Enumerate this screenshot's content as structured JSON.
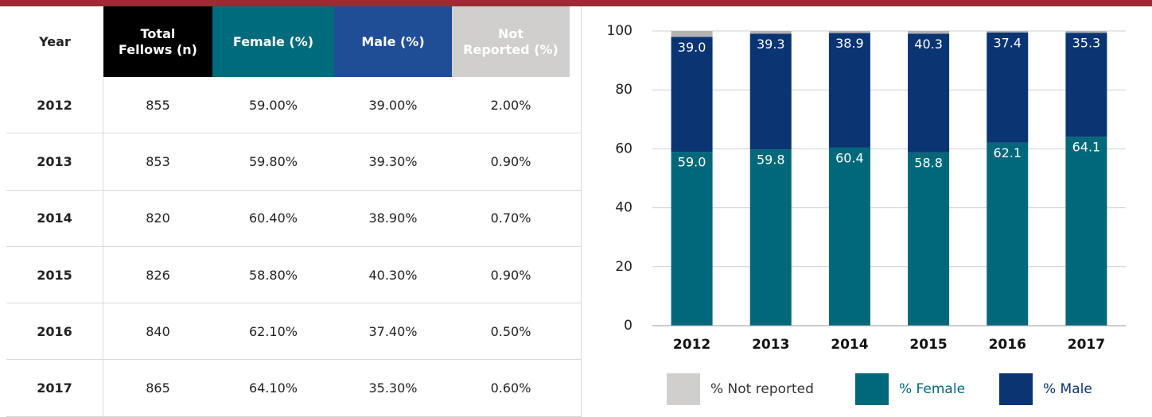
{
  "table": {
    "headers": [
      "Year",
      "Total Fellows (n)",
      "Female (%)",
      "Male (%)",
      "Not Reported (%)"
    ],
    "rows": [
      [
        "2012",
        "855",
        "59.00%",
        "39.00%",
        "2.00%"
      ],
      [
        "2013",
        "853",
        "59.80%",
        "39.30%",
        "0.90%"
      ],
      [
        "2014",
        "820",
        "60.40%",
        "38.90%",
        "0.70%"
      ],
      [
        "2015",
        "826",
        "58.80%",
        "40.30%",
        "0.90%"
      ],
      [
        "2016",
        "840",
        "62.10%",
        "37.40%",
        "0.50%"
      ],
      [
        "2017",
        "865",
        "64.10%",
        "35.30%",
        "0.60%"
      ]
    ]
  },
  "chart_data": {
    "type": "bar",
    "stacked": true,
    "categories": [
      "2012",
      "2013",
      "2014",
      "2015",
      "2016",
      "2017"
    ],
    "series": [
      {
        "name": "% Not reported",
        "color": "#b3b3b3",
        "values": [
          2.0,
          0.9,
          0.7,
          0.9,
          0.5,
          0.6
        ]
      },
      {
        "name": "% Female",
        "color": "#00687a",
        "values": [
          59.0,
          59.8,
          60.4,
          58.8,
          62.1,
          64.1
        ],
        "value_labels": [
          "59.0",
          "59.8",
          "60.4",
          "58.8",
          "62.1",
          "64.1"
        ]
      },
      {
        "name": "% Male",
        "color": "#0a3472",
        "values": [
          39.0,
          39.3,
          38.9,
          40.3,
          37.4,
          35.3
        ],
        "value_labels": [
          "39.0",
          "39.3",
          "38.9",
          "40.3",
          "37.4",
          "35.3"
        ]
      }
    ],
    "ylim": [
      0,
      100
    ],
    "yticks": [
      0,
      20,
      40,
      60,
      80,
      100
    ],
    "grid": true,
    "legend": "bottom"
  }
}
